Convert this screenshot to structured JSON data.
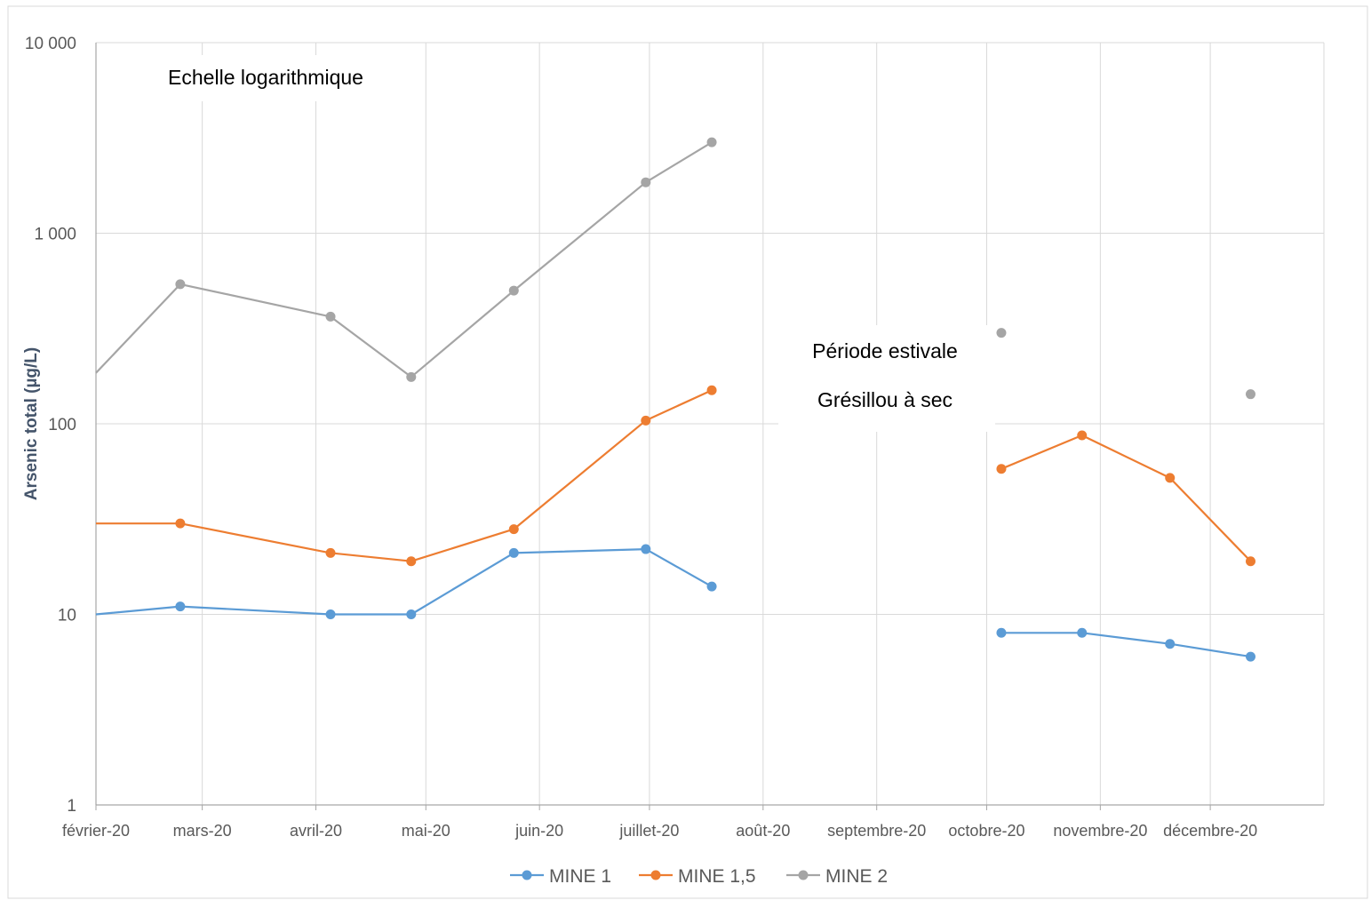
{
  "chart_data": {
    "type": "line",
    "title": "",
    "xlabel": "",
    "ylabel": "Arsenic total (µg/L)",
    "y_scale": "log",
    "ylim": [
      1,
      10000
    ],
    "y_ticks": [
      {
        "value": 1,
        "label": "1"
      },
      {
        "value": 10,
        "label": "10"
      },
      {
        "value": 100,
        "label": "100"
      },
      {
        "value": 1000,
        "label": "1 000"
      },
      {
        "value": 10000,
        "label": "10 000"
      }
    ],
    "xlim": [
      "2020-02-01",
      "2021-01-01"
    ],
    "x_ticks": [
      {
        "date": "2020-02-01",
        "label": "février-20"
      },
      {
        "date": "2020-03-01",
        "label": "mars-20"
      },
      {
        "date": "2020-04-01",
        "label": "avril-20"
      },
      {
        "date": "2020-05-01",
        "label": "mai-20"
      },
      {
        "date": "2020-06-01",
        "label": "juin-20"
      },
      {
        "date": "2020-07-01",
        "label": "juillet-20"
      },
      {
        "date": "2020-08-01",
        "label": "août-20"
      },
      {
        "date": "2020-09-01",
        "label": "septembre-20"
      },
      {
        "date": "2020-10-01",
        "label": "octobre-20"
      },
      {
        "date": "2020-11-01",
        "label": "novembre-20"
      },
      {
        "date": "2020-12-01",
        "label": "décembre-20"
      }
    ],
    "grid": true,
    "legend_position": "bottom",
    "annotations": [
      {
        "text": "Echelle logarithmique"
      },
      {
        "text": "Période estivale"
      },
      {
        "text": "Grésillou à sec"
      }
    ],
    "series": [
      {
        "name": "MINE 1",
        "color": "#5b9bd5",
        "segments": [
          {
            "points": [
              {
                "x": "2020-02-01",
                "y": 10,
                "marker": false
              },
              {
                "x": "2020-02-24",
                "y": 11,
                "marker": true
              },
              {
                "x": "2020-04-05",
                "y": 10,
                "marker": true
              },
              {
                "x": "2020-04-27",
                "y": 10,
                "marker": true
              },
              {
                "x": "2020-05-25",
                "y": 21,
                "marker": true
              },
              {
                "x": "2020-06-30",
                "y": 22,
                "marker": true
              },
              {
                "x": "2020-07-18",
                "y": 14,
                "marker": true
              }
            ]
          },
          {
            "points": [
              {
                "x": "2020-10-05",
                "y": 8,
                "marker": true
              },
              {
                "x": "2020-10-27",
                "y": 8,
                "marker": true
              },
              {
                "x": "2020-11-20",
                "y": 7,
                "marker": true
              },
              {
                "x": "2020-12-12",
                "y": 6,
                "marker": true
              }
            ]
          }
        ]
      },
      {
        "name": "MINE 1,5",
        "color": "#ed7d31",
        "segments": [
          {
            "points": [
              {
                "x": "2020-02-01",
                "y": 30,
                "marker": false
              },
              {
                "x": "2020-02-24",
                "y": 30,
                "marker": true
              },
              {
                "x": "2020-04-05",
                "y": 21,
                "marker": true
              },
              {
                "x": "2020-04-27",
                "y": 19,
                "marker": true
              },
              {
                "x": "2020-05-25",
                "y": 28,
                "marker": true
              },
              {
                "x": "2020-06-30",
                "y": 104,
                "marker": true
              },
              {
                "x": "2020-07-18",
                "y": 150,
                "marker": true
              }
            ]
          },
          {
            "points": [
              {
                "x": "2020-10-05",
                "y": 58,
                "marker": true
              },
              {
                "x": "2020-10-27",
                "y": 87,
                "marker": true
              },
              {
                "x": "2020-11-20",
                "y": 52,
                "marker": true
              },
              {
                "x": "2020-12-12",
                "y": 19,
                "marker": true
              }
            ]
          }
        ]
      },
      {
        "name": "MINE 2",
        "color": "#a5a5a5",
        "segments": [
          {
            "points": [
              {
                "x": "2020-02-01",
                "y": 185,
                "marker": false
              },
              {
                "x": "2020-02-24",
                "y": 540,
                "marker": true
              },
              {
                "x": "2020-04-05",
                "y": 365,
                "marker": true
              },
              {
                "x": "2020-04-27",
                "y": 176,
                "marker": true
              },
              {
                "x": "2020-05-25",
                "y": 500,
                "marker": true
              },
              {
                "x": "2020-06-30",
                "y": 1850,
                "marker": true
              },
              {
                "x": "2020-07-18",
                "y": 3000,
                "marker": true
              }
            ]
          },
          {
            "points": [
              {
                "x": "2020-10-05",
                "y": 300,
                "marker": true
              }
            ]
          },
          {
            "points": [
              {
                "x": "2020-12-12",
                "y": 143,
                "marker": true
              }
            ]
          }
        ]
      }
    ]
  }
}
